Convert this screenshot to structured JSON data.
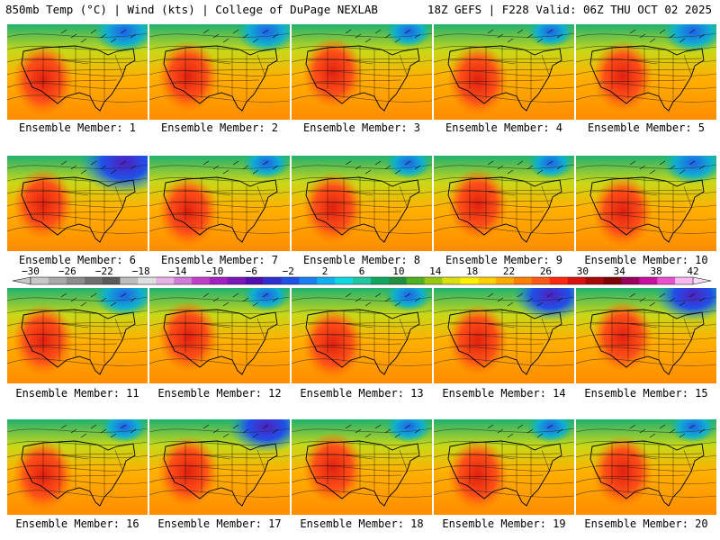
{
  "header": {
    "left": "850mb Temp (°C) | Wind (kts) | College of DuPage NEXLAB",
    "right": "18Z GEFS | F228 Valid: 06Z THU OCT 02 2025"
  },
  "member_label_prefix": "Ensemble Member: ",
  "members": [
    {
      "n": "1",
      "cold": 2
    },
    {
      "n": "2",
      "cold": 2
    },
    {
      "n": "3",
      "cold": 1
    },
    {
      "n": "4",
      "cold": 1
    },
    {
      "n": "5",
      "cold": 2
    },
    {
      "n": "6",
      "cold": 4
    },
    {
      "n": "7",
      "cold": 1
    },
    {
      "n": "8",
      "cold": 1
    },
    {
      "n": "9",
      "cold": 1
    },
    {
      "n": "10",
      "cold": 2
    },
    {
      "n": "11",
      "cold": 2
    },
    {
      "n": "12",
      "cold": 1
    },
    {
      "n": "13",
      "cold": 1
    },
    {
      "n": "14",
      "cold": 3
    },
    {
      "n": "15",
      "cold": 3
    },
    {
      "n": "16",
      "cold": 1
    },
    {
      "n": "17",
      "cold": 3
    },
    {
      "n": "18",
      "cold": 1
    },
    {
      "n": "19",
      "cold": 1
    },
    {
      "n": "20",
      "cold": 1
    }
  ],
  "colorbar": {
    "min": -30,
    "max": 42,
    "step": 2,
    "tick_labels": [
      "−30",
      "−26",
      "−22",
      "−18",
      "−14",
      "−10",
      "−6",
      "−2",
      "2",
      "6",
      "10",
      "14",
      "18",
      "22",
      "26",
      "30",
      "34",
      "38",
      "42"
    ],
    "colors": [
      "#c8c8c8",
      "#a9a9a9",
      "#8c8c8c",
      "#707070",
      "#5a5a5a",
      "#bcbcbc",
      "#e0e0e0",
      "#e6b3e6",
      "#d07cd8",
      "#c040c8",
      "#a020c0",
      "#7a18b8",
      "#5010b0",
      "#3030d0",
      "#2050e8",
      "#1a80f0",
      "#10b0f0",
      "#10d8e0",
      "#20c8a0",
      "#10a860",
      "#209040",
      "#50b020",
      "#98c810",
      "#d8e010",
      "#fff000",
      "#ffd000",
      "#ffa800",
      "#ff8000",
      "#ff5818",
      "#ff2810",
      "#d81010",
      "#a80808",
      "#800008",
      "#980060",
      "#c8109c",
      "#e850d0",
      "#f8b8f0"
    ]
  }
}
